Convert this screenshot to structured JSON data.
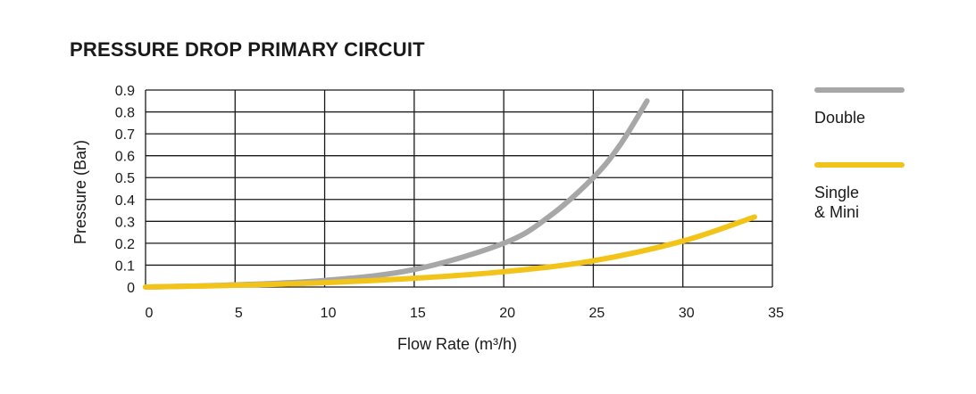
{
  "chart_data": {
    "type": "line",
    "title": "PRESSURE DROP PRIMARY CIRCUIT",
    "xlabel": "Flow Rate (m³/h)",
    "ylabel": "Pressure (Bar)",
    "xlim": [
      0,
      35
    ],
    "ylim": [
      0,
      0.9
    ],
    "xticks": [
      "0",
      "5",
      "10",
      "15",
      "20",
      "25",
      "30",
      "35"
    ],
    "yticks": [
      "0",
      "0.1",
      "0.2",
      "0.3",
      "0.4",
      "0.5",
      "0.6",
      "0.7",
      "0.8",
      "0.9"
    ],
    "grid": true,
    "legend_position": "right",
    "series": [
      {
        "name": "Double",
        "legend_lines": [
          "Double"
        ],
        "color": "#a8a7a7",
        "x": [
          0,
          5,
          10,
          15,
          20,
          22.5,
          25,
          26.5,
          28
        ],
        "y": [
          0.0,
          0.01,
          0.03,
          0.08,
          0.2,
          0.32,
          0.5,
          0.65,
          0.85
        ]
      },
      {
        "name": "Single & Mini",
        "legend_lines": [
          "Single",
          "& Mini"
        ],
        "color": "#f2c419",
        "x": [
          0,
          5,
          10,
          15,
          20,
          25,
          30,
          34
        ],
        "y": [
          0.0,
          0.008,
          0.02,
          0.04,
          0.07,
          0.12,
          0.21,
          0.32
        ]
      }
    ]
  }
}
